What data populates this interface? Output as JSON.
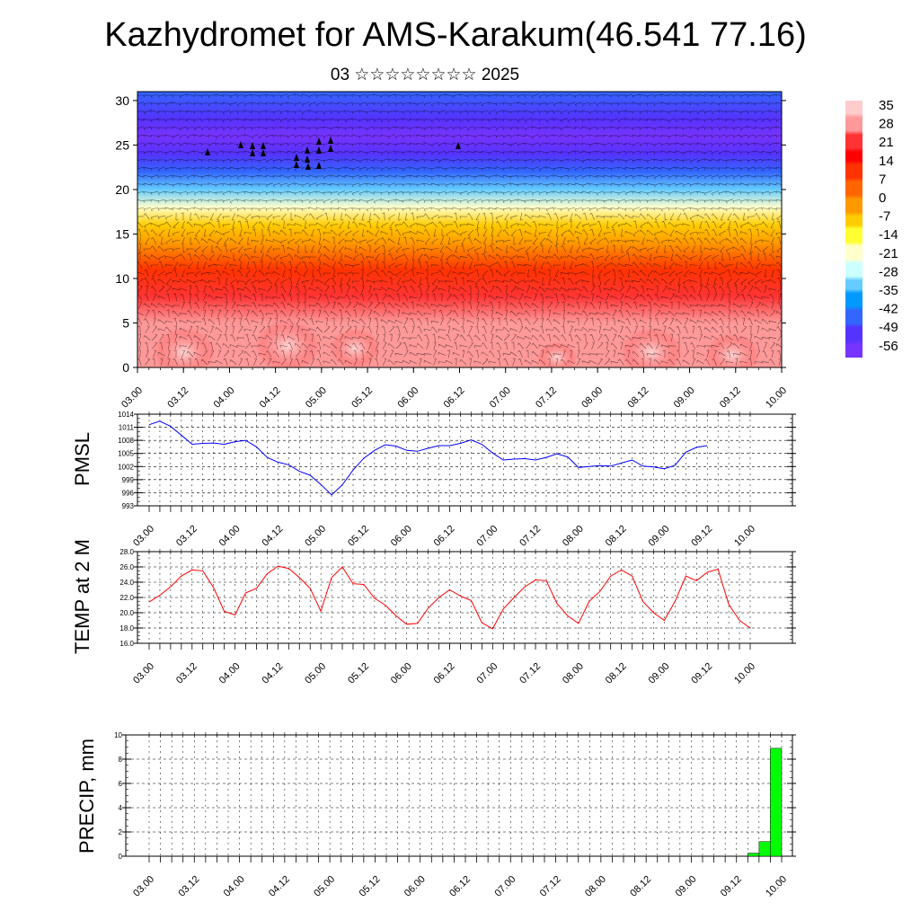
{
  "header": {
    "title": "Kazhydromet for AMS-Karakum(46.541 77.16)",
    "subtitle": "03 ☆☆☆☆☆☆☆☆ 2025"
  },
  "colors": {
    "pmsl_line": "#0000ff",
    "temp_line": "#ff0000",
    "precip_bar": "#00ff00",
    "colormap": [
      "#ffcccc",
      "#ff9999",
      "#ff3333",
      "#ff0000",
      "#ff3300",
      "#ff6600",
      "#ff9900",
      "#ffcc00",
      "#ffff33",
      "#ffffcc",
      "#ccffff",
      "#66ccff",
      "#0099ff",
      "#3366ff",
      "#5533ff",
      "#7733ff"
    ]
  },
  "chart_data": [
    {
      "type": "heatmap",
      "name": "temperature-wind-cross-section",
      "x_tick_labels": [
        "03.00",
        "03.12",
        "04.00",
        "04.12",
        "05.00",
        "05.12",
        "06.00",
        "06.12",
        "07.00",
        "07.12",
        "08.00",
        "08.12",
        "09.00",
        "09.12",
        "10.00"
      ],
      "y_tick_labels": [
        "0",
        "5",
        "10",
        "15",
        "20",
        "25",
        "30"
      ],
      "ylim": [
        0,
        31
      ],
      "colorbar_labels": [
        "35",
        "28",
        "21",
        "14",
        "7",
        "0",
        "-7",
        "-14",
        "-21",
        "-28",
        "-35",
        "-42",
        "-49",
        "-56"
      ],
      "clim": [
        -60,
        38
      ],
      "profile": [
        {
          "y": 0,
          "value": 28
        },
        {
          "y": 5,
          "value": 26
        },
        {
          "y": 8,
          "value": 20
        },
        {
          "y": 11,
          "value": 10
        },
        {
          "y": 14,
          "value": 0
        },
        {
          "y": 16,
          "value": -8
        },
        {
          "y": 18,
          "value": -20
        },
        {
          "y": 20,
          "value": -30
        },
        {
          "y": 22,
          "value": -42
        },
        {
          "y": 24,
          "value": -52
        },
        {
          "y": 26,
          "value": -56
        },
        {
          "y": 28,
          "value": -50
        },
        {
          "y": 31,
          "value": -46
        }
      ],
      "overlay": "wind-barbs"
    },
    {
      "type": "line",
      "name": "PMSL",
      "ylabel": "PMSL",
      "ylim": [
        993,
        1014
      ],
      "y_tick_labels": [
        "1014",
        "1011",
        "1008",
        "1005",
        "1002",
        "999",
        "996",
        "993"
      ],
      "x_tick_labels": [
        "03.00",
        "03.12",
        "04.00",
        "04.12",
        "05.00",
        "05.12",
        "06.00",
        "06.12",
        "07.00",
        "07.12",
        "08.00",
        "08.12",
        "09.00",
        "09.12",
        "10.00"
      ],
      "x_step_hours": 3,
      "values": [
        1011.6,
        1012.4,
        1011.2,
        1009.2,
        1007.1,
        1007.3,
        1007.4,
        1007.1,
        1007.7,
        1008.0,
        1006.5,
        1004.1,
        1003.0,
        1002.4,
        1000.9,
        1000.0,
        997.9,
        995.5,
        997.8,
        1001.2,
        1003.9,
        1005.7,
        1007.0,
        1006.7,
        1005.7,
        1005.5,
        1006.2,
        1006.8,
        1006.8,
        1007.3,
        1008.1,
        1007.1,
        1005.1,
        1003.5,
        1003.7,
        1003.8,
        1003.5,
        1004.1,
        1004.9,
        1004.2,
        1001.8,
        1002.0,
        1002.2,
        1002.1,
        1002.8,
        1003.5,
        1002.1,
        1001.9,
        1001.5,
        1002.3,
        1005.3,
        1006.4,
        1006.8
      ]
    },
    {
      "type": "line",
      "name": "TEMP at 2 M",
      "ylabel": "TEMP at 2 M",
      "ylim": [
        16,
        28
      ],
      "y_tick_labels": [
        "28.0",
        "26.0",
        "24.0",
        "22.0",
        "20.0",
        "18.0",
        "16.0"
      ],
      "x_tick_labels": [
        "03.00",
        "03.12",
        "04.00",
        "04.12",
        "05.00",
        "05.12",
        "06.00",
        "06.12",
        "07.00",
        "07.12",
        "08.00",
        "08.12",
        "09.00",
        "09.12",
        "10.00"
      ],
      "x_step_hours": 3,
      "values": [
        21.4,
        22.3,
        23.4,
        24.8,
        25.6,
        25.5,
        23.3,
        20.2,
        19.7,
        22.6,
        23.2,
        25.1,
        26.1,
        25.8,
        24.6,
        23.2,
        20.2,
        24.6,
        26.0,
        23.8,
        23.7,
        21.9,
        21.0,
        19.6,
        18.5,
        18.6,
        20.6,
        22.0,
        23.0,
        22.2,
        21.6,
        18.7,
        17.9,
        20.5,
        22.0,
        23.4,
        24.3,
        24.2,
        21.2,
        19.6,
        18.6,
        21.5,
        22.8,
        24.8,
        25.6,
        24.8,
        21.5,
        20.0,
        19.0,
        21.5,
        24.8,
        24.2,
        25.3,
        25.7,
        21.1,
        19.0,
        18.0
      ]
    },
    {
      "type": "bar",
      "name": "PRECIP",
      "ylabel": "PRECIP, mm",
      "ylim": [
        0,
        10
      ],
      "y_tick_labels": [
        "10",
        "8",
        "6",
        "4",
        "2",
        "0"
      ],
      "x_tick_labels": [
        "03.00",
        "03.12",
        "04.00",
        "04.12",
        "05.00",
        "05.12",
        "06.00",
        "06.12",
        "07.00",
        "07.12",
        "08.00",
        "08.12",
        "09.00",
        "09.12",
        "10.00"
      ],
      "bars": [
        {
          "x_hours": 162,
          "value": 0.25
        },
        {
          "x_hours": 165,
          "value": 1.2
        },
        {
          "x_hours": 168,
          "value": 8.9
        }
      ]
    }
  ]
}
